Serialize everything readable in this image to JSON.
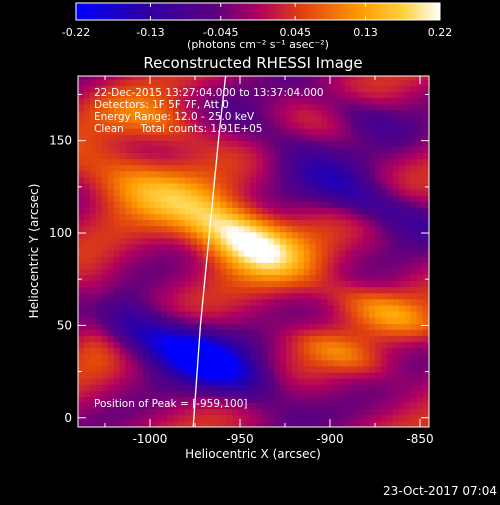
{
  "chart_data": {
    "type": "heatmap",
    "title": "Reconstructed RHESSI Image",
    "colorbar": {
      "ticks": [
        "-0.22",
        "-0.13",
        "-0.045",
        "0.045",
        "0.13",
        "0.22"
      ],
      "tick_values": [
        -0.22,
        -0.13,
        -0.045,
        0.045,
        0.13,
        0.22
      ],
      "range": [
        -0.22,
        0.22
      ],
      "units": "(photons cm⁻² s⁻¹ asec⁻²)",
      "colors": [
        "#0000ff",
        "#2a00a8",
        "#5a0080",
        "#b00060",
        "#e04010",
        "#ff9a00",
        "#ffd040",
        "#ffffff"
      ]
    },
    "xlabel": "Heliocentric X (arcsec)",
    "ylabel": "Heliocentric Y (arcsec)",
    "xlim": [
      -1040,
      -845
    ],
    "ylim": [
      -5,
      185
    ],
    "x_ticks": [
      "-1000",
      "-950",
      "-900",
      "-850"
    ],
    "x_tick_values": [
      -1000,
      -950,
      -900,
      -850
    ],
    "y_ticks": [
      "0",
      "50",
      "100",
      "150"
    ],
    "y_tick_values": [
      0,
      50,
      100,
      150
    ],
    "annotations": [
      "22-Dec-2015 13:27:04.000 to 13:37:04.000",
      "Detectors: 1F 5F 7F, Att 0",
      "Energy Range: 12.0 - 25.0 keV",
      "Clean     Total counts: 1.91E+05"
    ],
    "peak_label": "Position of Peak = [-959,100]",
    "peak": [
      -959,
      100
    ],
    "limb_points": [
      [
        -958,
        185
      ],
      [
        -962,
        150
      ],
      [
        -967,
        100
      ],
      [
        -972,
        50
      ],
      [
        -976,
        -5
      ]
    ],
    "grid": false
  },
  "footer": {
    "date": "23-Oct-2017 07:04"
  }
}
